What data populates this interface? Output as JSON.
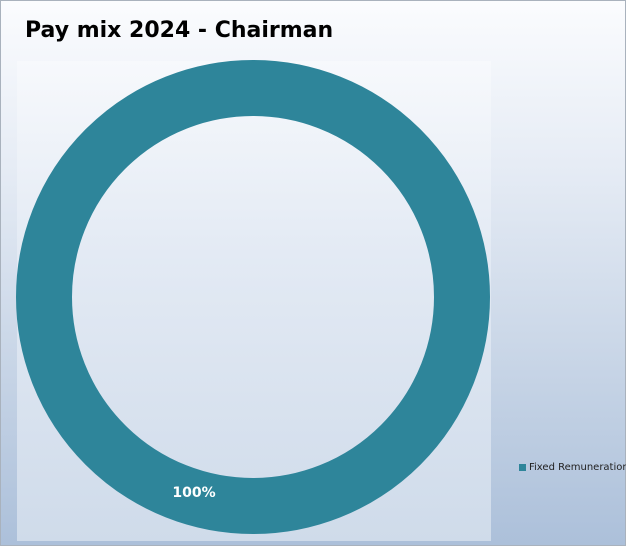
{
  "chart_data": {
    "type": "pie",
    "title": "Pay mix 2024 - Chairman",
    "categories": [
      "Fixed Remuneration"
    ],
    "values": [
      100
    ],
    "data_labels": [
      "100%"
    ],
    "legend_position": "right",
    "colors": [
      "#2e859a"
    ]
  },
  "legend": {
    "label": "Fixed Remuneration"
  }
}
